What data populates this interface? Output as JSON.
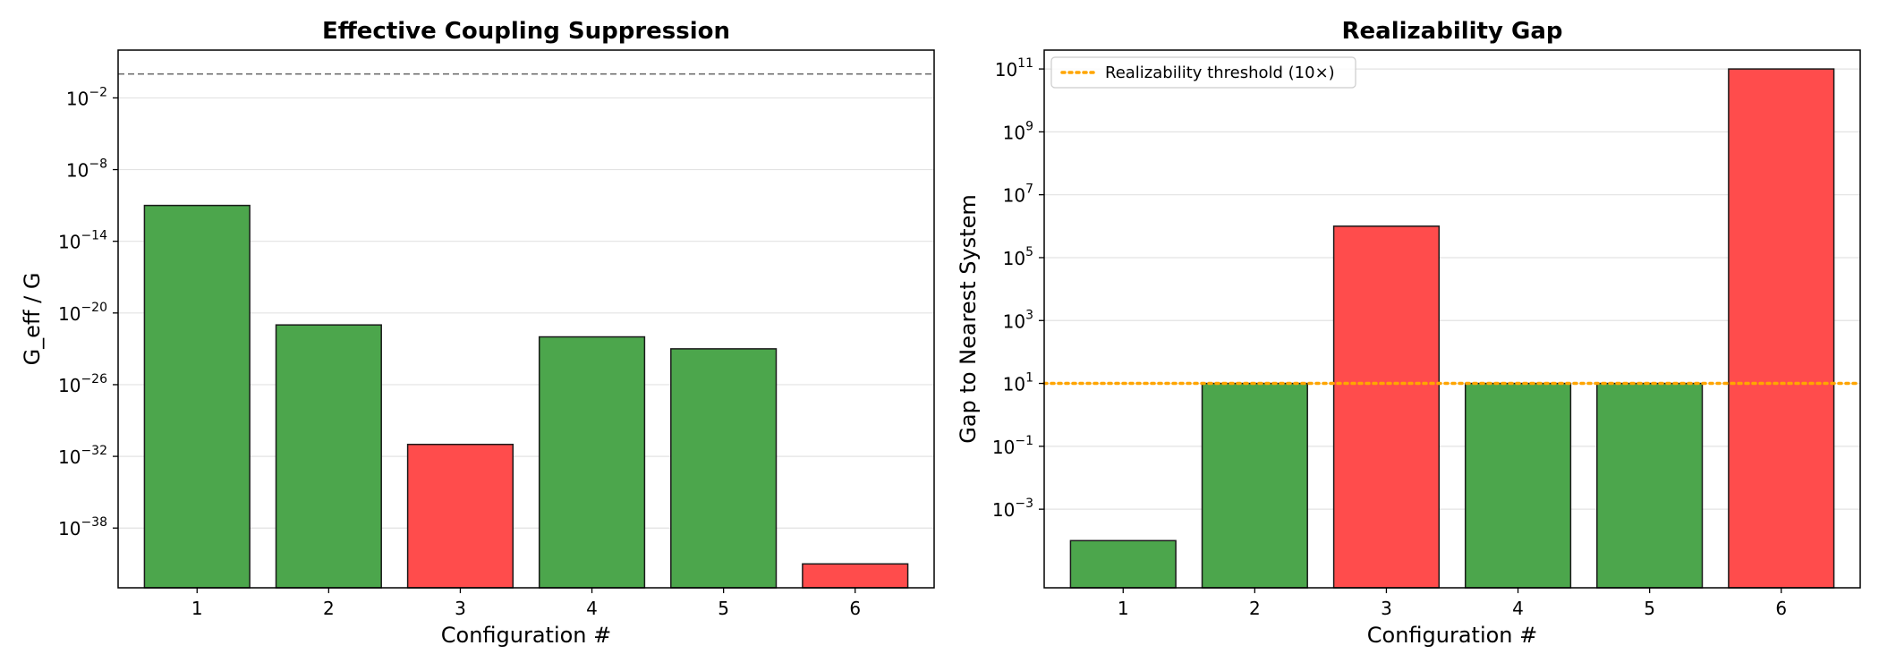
{
  "chart_data": [
    {
      "type": "bar",
      "title": "Effective Coupling Suppression",
      "xlabel": "Configuration #",
      "ylabel": "G_eff / G",
      "yscale": "log",
      "ylim_exponents": [
        -43,
        2
      ],
      "categories": [
        "1",
        "2",
        "3",
        "4",
        "5",
        "6"
      ],
      "values": [
        1e-11,
        1e-21,
        1e-31,
        1e-22,
        1e-23,
        1e-41
      ],
      "bar_colors": [
        "#4ca64c",
        "#4ca64c",
        "#ff4c4c",
        "#4ca64c",
        "#4ca64c",
        "#ff4c4c"
      ],
      "ytick_exponents": [
        -38,
        -32,
        -26,
        -20,
        -14,
        -8,
        -2
      ],
      "reference_line": {
        "value": 1,
        "style": "dashed",
        "color": "#707070"
      },
      "grid": "y"
    },
    {
      "type": "bar",
      "title": "Realizability Gap",
      "xlabel": "Configuration #",
      "ylabel": "Gap to Nearest System",
      "yscale": "log",
      "ylim_exponents": [
        -5.5,
        11.6
      ],
      "categories": [
        "1",
        "2",
        "3",
        "4",
        "5",
        "6"
      ],
      "values": [
        0.0001,
        10,
        1000000,
        10,
        10,
        100000000000
      ],
      "bar_colors": [
        "#4ca64c",
        "#4ca64c",
        "#ff4c4c",
        "#4ca64c",
        "#4ca64c",
        "#ff4c4c"
      ],
      "ytick_exponents": [
        -3,
        -1,
        1,
        3,
        5,
        7,
        9,
        11
      ],
      "reference_line": {
        "value": 10,
        "style": "dotted",
        "color": "#ffa500",
        "label": "Realizability threshold (10×)"
      },
      "legend": "top-left",
      "grid": "y"
    }
  ]
}
